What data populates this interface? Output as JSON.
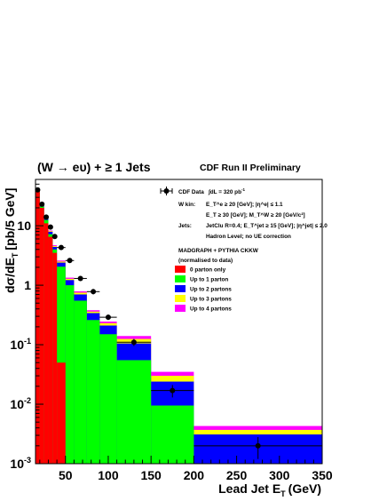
{
  "chart_data": {
    "type": "bar",
    "title": "(W → eυ) + ≥ 1 Jets",
    "subtitle": "CDF Run II Preliminary",
    "xlabel": "Lead Jet E",
    "xlabel_sub": "T",
    "xlabel_unit": "(GeV)",
    "ylabel": "dσ/dE",
    "ylabel_sub": "T",
    "ylabel_unit": "[pb/5 GeV]",
    "xlim": [
      15,
      350
    ],
    "ylim": [
      0.001,
      60
    ],
    "y_scale": "log",
    "x_ticks": [
      50,
      100,
      150,
      200,
      250,
      300,
      350
    ],
    "x_tick_labels": [
      "50",
      "100",
      "150",
      "200",
      "250",
      "300",
      "350"
    ],
    "y_ticks": [
      0.001,
      0.01,
      0.1,
      1,
      10
    ],
    "y_tick_labels": [
      {
        "base": "10",
        "exp": "-3"
      },
      {
        "base": "10",
        "exp": "-2"
      },
      {
        "base": "10",
        "exp": "-1"
      },
      {
        "base": "1",
        "exp": ""
      },
      {
        "base": "10",
        "exp": ""
      }
    ],
    "bin_edges": [
      15,
      20,
      25,
      30,
      35,
      40,
      50,
      60,
      75,
      90,
      110,
      150,
      200,
      350
    ],
    "series": [
      {
        "name": "0 parton only",
        "color": "#ff0000",
        "values": [
          38,
          20,
          11,
          6.5,
          3.5,
          0.05,
          0.001,
          0.001,
          0.001,
          0.001,
          0.001,
          0.001,
          0.001
        ]
      },
      {
        "name": "Up to 1 parton",
        "color": "#00ff00",
        "values": [
          40,
          21,
          12.5,
          7.2,
          4.0,
          2.05,
          1.0,
          0.55,
          0.26,
          0.15,
          0.055,
          0.0095,
          0.001
        ]
      },
      {
        "name": "Up to 2 partons",
        "color": "#0000ff",
        "values": [
          41,
          21.8,
          13.3,
          7.9,
          4.4,
          2.4,
          1.22,
          0.7,
          0.34,
          0.21,
          0.105,
          0.024,
          0.0031
        ]
      },
      {
        "name": "Up to 3 partons",
        "color": "#ffff00",
        "values": [
          41.5,
          22.1,
          13.6,
          8.1,
          4.55,
          2.5,
          1.28,
          0.75,
          0.36,
          0.23,
          0.125,
          0.03,
          0.0037
        ]
      },
      {
        "name": "Up to 4 partons",
        "color": "#ff00ff",
        "values": [
          42,
          22.4,
          13.9,
          8.3,
          4.7,
          2.6,
          1.34,
          0.79,
          0.38,
          0.245,
          0.14,
          0.035,
          0.0043
        ]
      }
    ],
    "data_points": {
      "name": "CDF Data",
      "x": [
        17.5,
        22.5,
        27.5,
        32.5,
        37.5,
        45,
        55,
        67.5,
        82.5,
        100,
        130,
        175,
        275
      ],
      "y": [
        40,
        23,
        14,
        9.5,
        6.6,
        4.3,
        2.6,
        1.3,
        0.78,
        0.29,
        0.11,
        0.017,
        0.002
      ],
      "yerr": [
        3,
        1.5,
        1.0,
        0.7,
        0.5,
        0.35,
        0.2,
        0.12,
        0.08,
        0.03,
        0.015,
        0.004,
        0.0008
      ]
    },
    "legend": {
      "placement": "top-right",
      "data_label": "CDF Data",
      "lumi_text": "∫dL = 320 pb",
      "lumi_sup": "-1",
      "cuts": [
        {
          "label": "W kin:",
          "text": "E_T^e ≥ 20 [GeV]; |η^e| ≤ 1.1"
        },
        {
          "label": "",
          "text": "E_T ≥ 30 [GeV]; M_T^W ≥ 20 [GeV/c²]"
        },
        {
          "label": "Jets:",
          "text": "JetClu R=0.4; E_T^jet ≥ 15 [GeV]; |η^jet| ≤ 2.0"
        },
        {
          "label": "",
          "text": "Hadron Level; no UE correction"
        }
      ],
      "mc_title": "MADGRAPH + PYTHIA CKKW",
      "mc_note": "(normalised to data)"
    }
  }
}
